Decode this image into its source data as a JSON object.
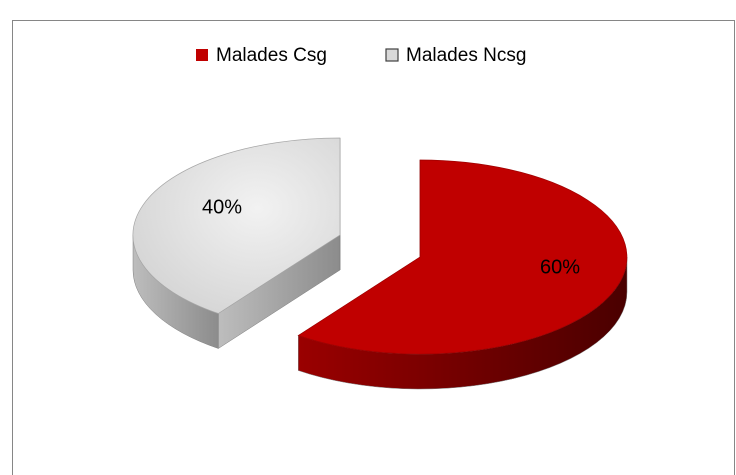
{
  "chart_data": {
    "type": "pie",
    "categories": [
      "Malades Csg",
      "Malades Ncsg"
    ],
    "values": [
      60,
      40
    ],
    "value_labels": [
      "60%",
      "40%"
    ],
    "colors": [
      "#c00000",
      "#d9d9d9"
    ],
    "legend": "top"
  }
}
